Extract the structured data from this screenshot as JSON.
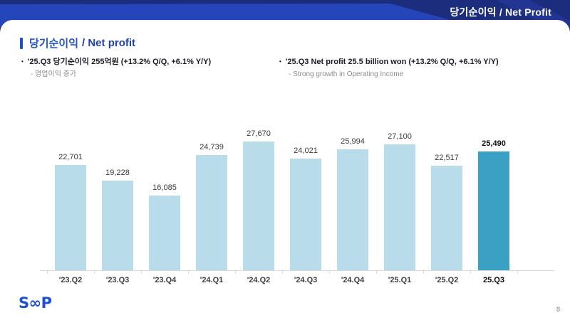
{
  "header": {
    "title": "당기순이익 / Net Profit"
  },
  "section": {
    "title_ko": "당기순이익",
    "title_en": "/ Net profit"
  },
  "bullets": {
    "marker": "•",
    "ko": {
      "main": "'25.Q3 당기순이익 255억원 (+13.2% Q/Q, +6.1% Y/Y)",
      "sub": "- 영업이익 증가"
    },
    "en": {
      "main": "'25.Q3 Net profit 25.5 billion won (+13.2% Q/Q, +6.1% Y/Y)",
      "sub": "- Strong growth in Operating Income"
    }
  },
  "chart_data": {
    "type": "bar",
    "categories": [
      "'23.Q2",
      "'23.Q3",
      "'23.Q4",
      "'24.Q1",
      "'24.Q2",
      "'24.Q3",
      "'24.Q4",
      "'25.Q1",
      "'25.Q2",
      "25.Q3"
    ],
    "values": [
      22701,
      19228,
      16085,
      24739,
      27670,
      24021,
      25994,
      27100,
      22517,
      25490
    ],
    "highlight_index": 9,
    "ylim": [
      0,
      30000
    ],
    "grid": false,
    "legend": false,
    "title": "",
    "xlabel": "",
    "ylabel": "",
    "colors": {
      "bar": "#b9dcea",
      "bar_highlight": "#3ba1c4",
      "axis": "#d9d9d9",
      "accent_blue": "#2151c0",
      "header_base": "#1b2d7c",
      "header_band": "#2446ba",
      "logo_blue": "#1c4fd8"
    }
  },
  "footer": {
    "logo": "SOOP",
    "page": "8"
  }
}
